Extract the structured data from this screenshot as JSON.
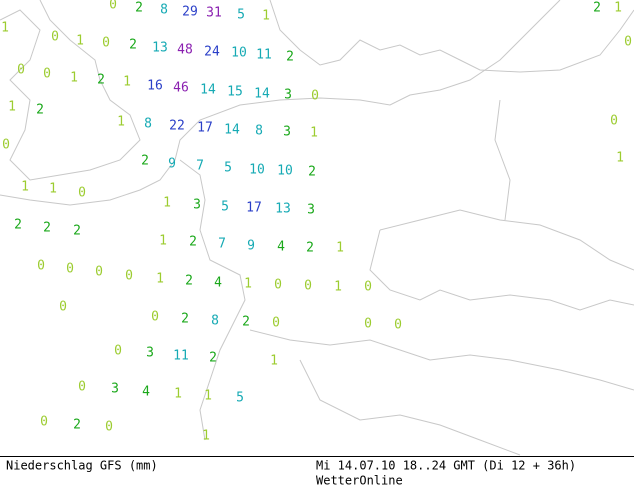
{
  "map": {
    "labels": [
      0,
      2,
      8,
      29,
      31,
      5,
      1,
      2,
      1,
      1,
      0,
      1,
      0,
      2,
      13,
      48,
      24,
      10,
      11,
      2,
      0,
      0,
      0,
      1,
      2,
      1,
      16,
      46,
      14,
      15,
      14,
      3,
      0,
      1,
      2,
      0,
      1,
      8,
      22,
      17,
      14,
      8,
      3,
      1,
      0,
      1,
      2,
      9,
      7,
      5,
      10,
      10,
      2,
      1,
      1,
      0,
      1,
      3,
      5,
      17,
      13,
      3,
      2,
      2,
      2,
      1,
      2,
      7,
      9,
      4,
      2,
      1,
      0,
      0,
      0,
      0,
      1,
      2,
      4,
      1,
      0,
      0,
      1,
      0,
      0,
      0,
      2,
      8,
      2,
      0,
      0,
      0,
      0,
      3,
      11,
      2,
      1,
      0,
      3,
      4,
      1,
      1,
      5,
      0,
      2,
      0,
      1
    ]
  },
  "footer": {
    "title": "Niederschlag GFS (mm)",
    "time": "Mi 14.07.10 18..24 GMT (Di 12 + 36h)",
    "source": "WetterOnline"
  }
}
